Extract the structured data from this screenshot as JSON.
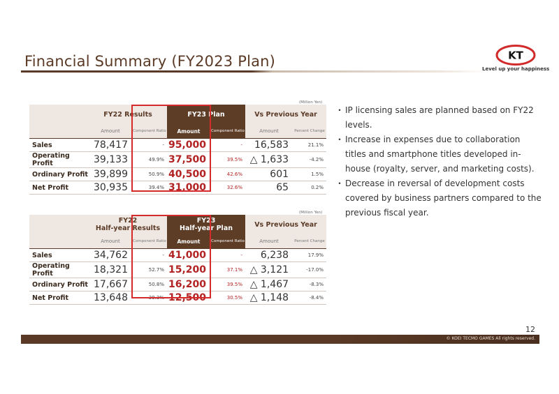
{
  "page": {
    "title": "Financial Summary (FY2023 Plan)",
    "tagline": "Level up your happiness",
    "logo_text": "KT",
    "page_number": "12",
    "copyright": "© KOEI TECMO GAMES All rights reserved."
  },
  "colors": {
    "brand_brown": "#5e3d27",
    "highlight_red": "#b22222",
    "box_red": "#d42a2a"
  },
  "table1": {
    "unit": "(Million Yen)",
    "groups": [
      "FY22 Results",
      "FY23 Plan",
      "Vs Previous Year"
    ],
    "subheaders": {
      "amount": "Amount",
      "component_ratio": "Component Ratio",
      "percent_change": "Percent Change"
    },
    "rows": [
      {
        "label": "Sales",
        "fy22_amount": "78,417",
        "fy22_ratio": "-",
        "plan_amount": "95,000",
        "plan_ratio": "-",
        "diff_amount": "16,583",
        "diff_pct": "21.1%"
      },
      {
        "label": "Operating Profit",
        "fy22_amount": "39,133",
        "fy22_ratio": "49.9%",
        "plan_amount": "37,500",
        "plan_ratio": "39.5%",
        "diff_amount": "△ 1,633",
        "diff_pct": "-4.2%"
      },
      {
        "label": "Ordinary Profit",
        "fy22_amount": "39,899",
        "fy22_ratio": "50.9%",
        "plan_amount": "40,500",
        "plan_ratio": "42.6%",
        "diff_amount": "601",
        "diff_pct": "1.5%"
      },
      {
        "label": "Net Profit",
        "fy22_amount": "30,935",
        "fy22_ratio": "39.4%",
        "plan_amount": "31,000",
        "plan_ratio": "32.6%",
        "diff_amount": "65",
        "diff_pct": "0.2%"
      }
    ]
  },
  "table2": {
    "unit": "(Million Yen)",
    "groups": [
      {
        "line1": "FY22",
        "line2": "Half-year Results"
      },
      {
        "line1": "FY23",
        "line2": "Half-year Plan"
      },
      {
        "line1": "Vs Previous Year",
        "line2": ""
      }
    ],
    "rows": [
      {
        "label": "Sales",
        "fy22_amount": "34,762",
        "fy22_ratio": "-",
        "plan_amount": "41,000",
        "plan_ratio": "-",
        "diff_amount": "6,238",
        "diff_pct": "17.9%"
      },
      {
        "label": "Operating Profit",
        "fy22_amount": "18,321",
        "fy22_ratio": "52.7%",
        "plan_amount": "15,200",
        "plan_ratio": "37.1%",
        "diff_amount": "△ 3,121",
        "diff_pct": "-17.0%"
      },
      {
        "label": "Ordinary Profit",
        "fy22_amount": "17,667",
        "fy22_ratio": "50.8%",
        "plan_amount": "16,200",
        "plan_ratio": "39.5%",
        "diff_amount": "△ 1,467",
        "diff_pct": "-8.3%"
      },
      {
        "label": "Net Profit",
        "fy22_amount": "13,648",
        "fy22_ratio": "39.3%",
        "plan_amount": "12,500",
        "plan_ratio": "30.5%",
        "diff_amount": "△ 1,148",
        "diff_pct": "-8.4%"
      }
    ]
  },
  "bullets": {
    "marker": "・",
    "items": [
      "IP licensing sales are planned based on FY22 levels.",
      "Increase in expenses due to collaboration titles and smartphone titles developed in-house (royalty, server, and marketing costs).",
      "Decrease in reversal of development costs covered by business partners compared to the previous fiscal year."
    ]
  }
}
